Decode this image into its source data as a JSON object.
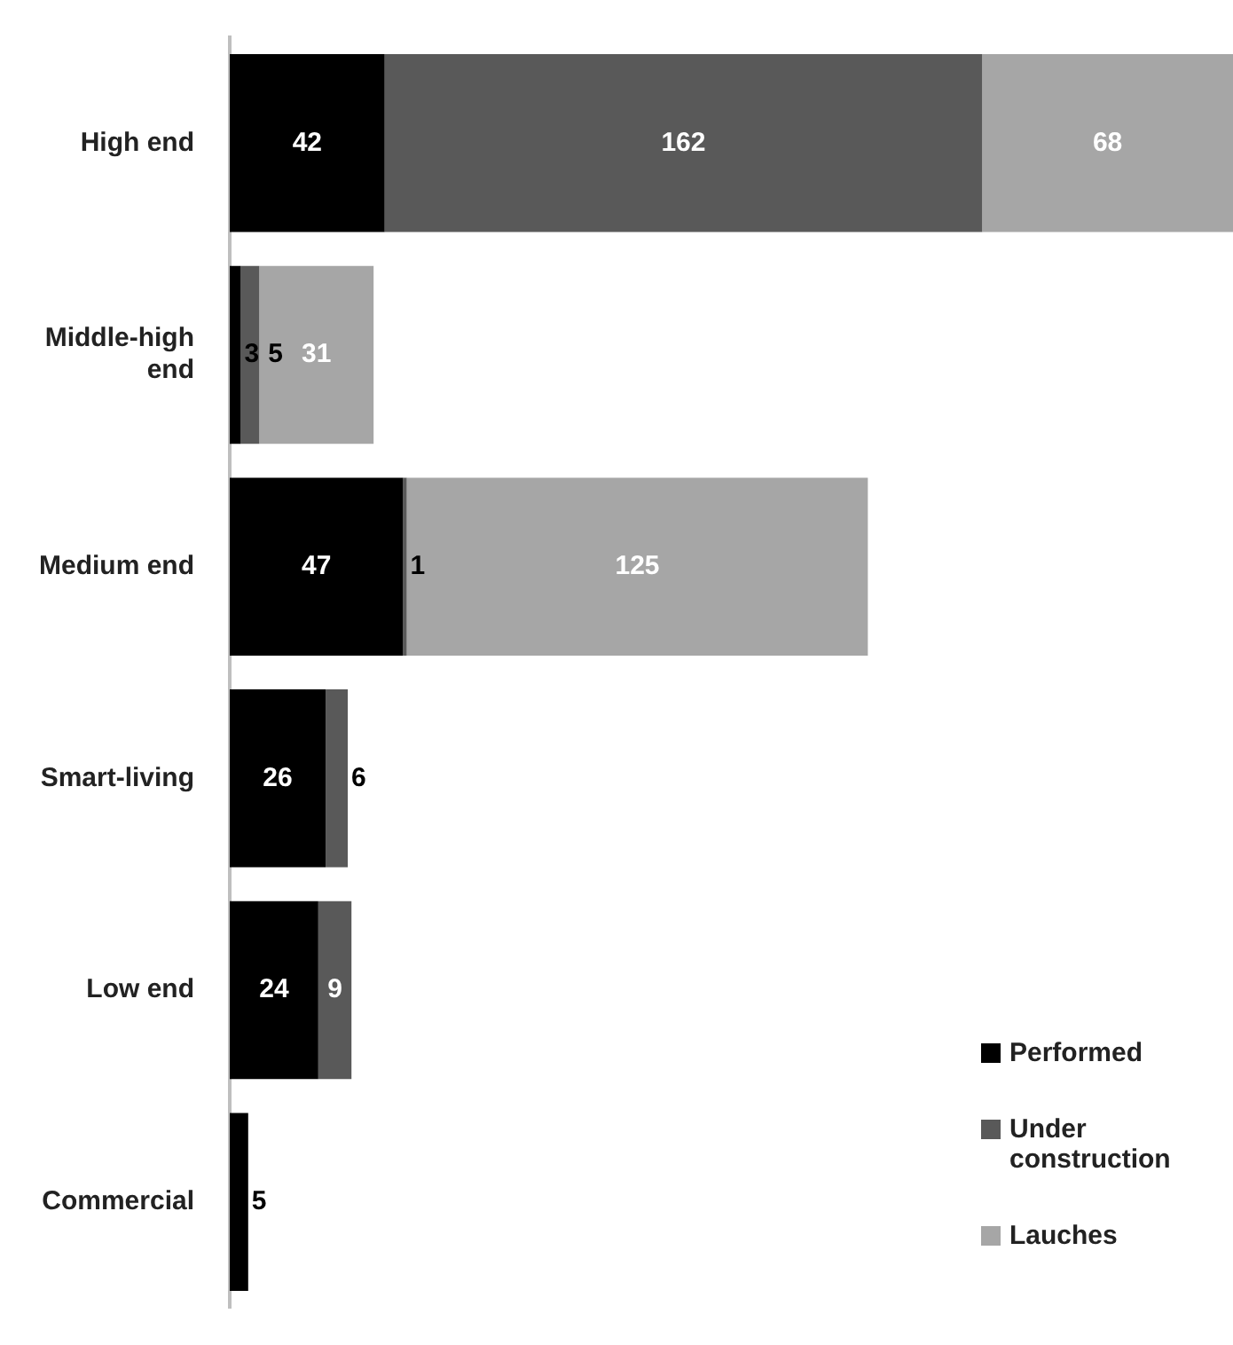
{
  "chart_data": {
    "type": "bar",
    "orientation": "horizontal",
    "stacked": true,
    "data_labels": true,
    "legend": "bottom right",
    "categories": [
      "High end",
      "Middle-high end",
      "Medium end",
      "Smart-living",
      "Low end",
      "Commercial"
    ],
    "series": [
      {
        "name": "Performed",
        "color": "#000000",
        "values": [
          42,
          3,
          47,
          26,
          24,
          5
        ]
      },
      {
        "name": "Under construction",
        "color": "#595959",
        "values": [
          162,
          5,
          1,
          6,
          9,
          null
        ]
      },
      {
        "name": "Lauches",
        "color": "#a6a6a6",
        "values": [
          68,
          31,
          125,
          null,
          null,
          null
        ]
      }
    ]
  }
}
